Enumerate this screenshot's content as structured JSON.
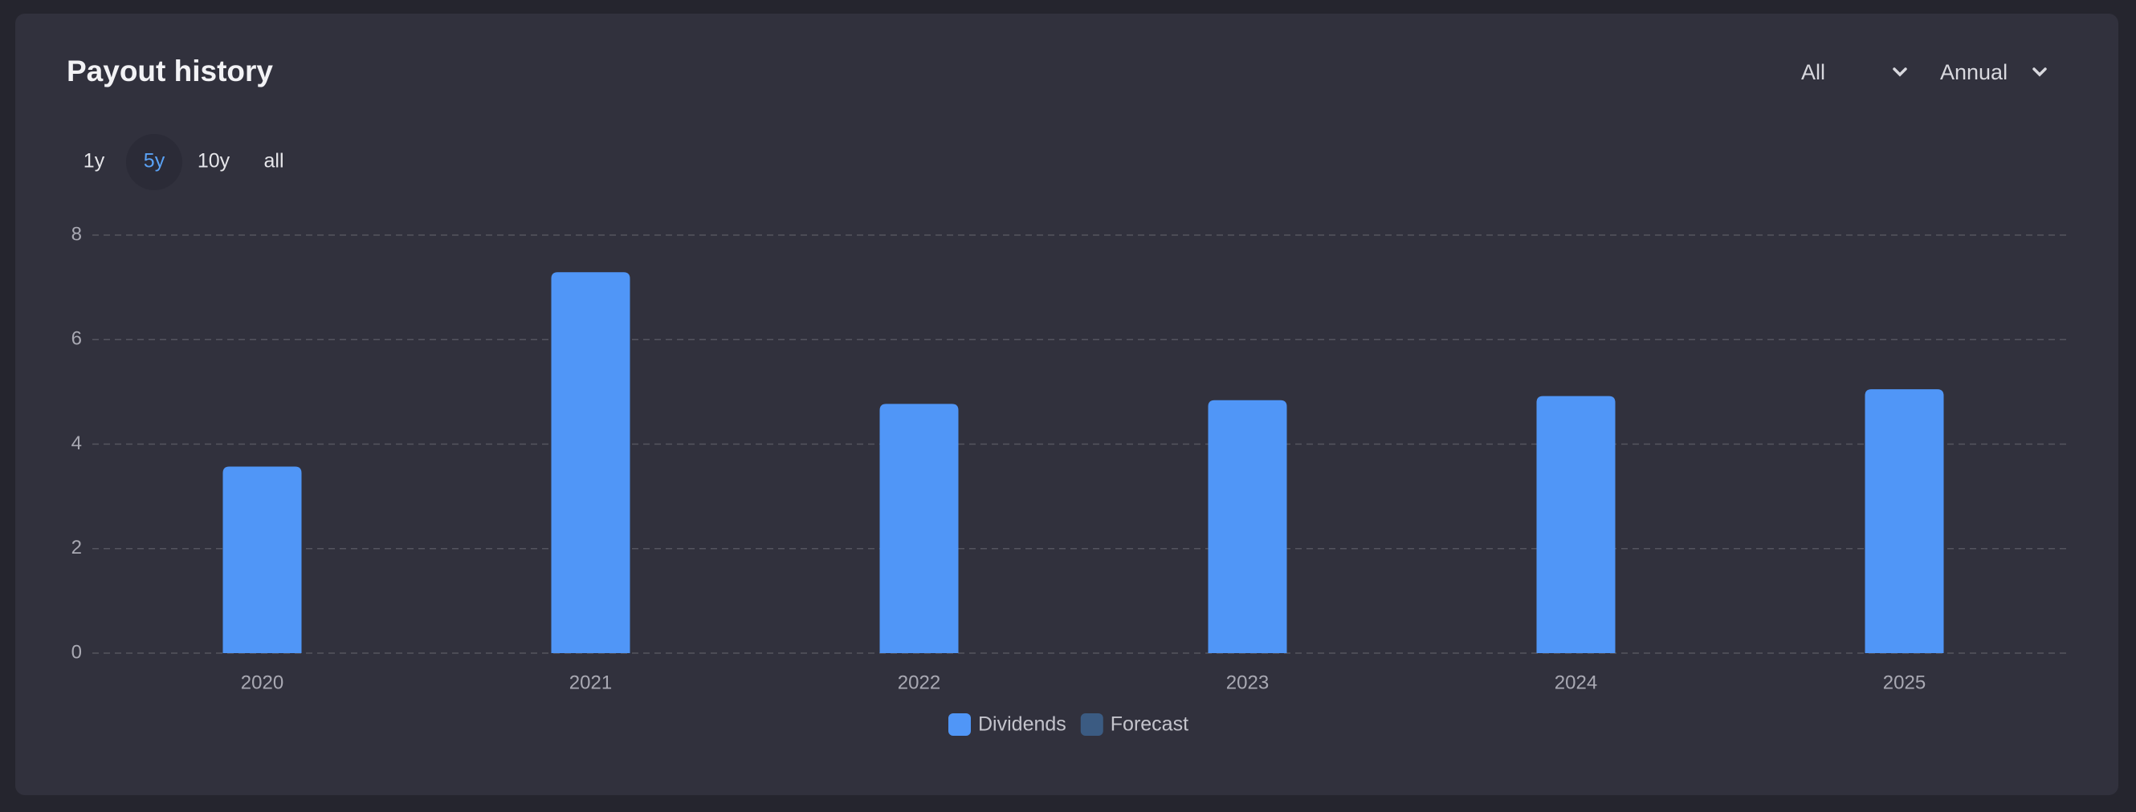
{
  "header": {
    "title": "Payout history",
    "filters": [
      "All",
      "Annual"
    ]
  },
  "ranges": [
    "1y",
    "5y",
    "10y",
    "all"
  ],
  "chart_data": {
    "type": "bar",
    "categories": [
      "2020",
      "2021",
      "2022",
      "2023",
      "2024",
      "2025"
    ],
    "series": [
      {
        "name": "Dividends",
        "color": "#5096f7",
        "values": [
          3.57,
          7.29,
          4.77,
          4.84,
          4.92,
          5.05
        ]
      },
      {
        "name": "Forecast",
        "color": "#3b5b82",
        "values": [
          null,
          null,
          null,
          null,
          null,
          null
        ]
      }
    ],
    "ylim": [
      0,
      8
    ],
    "yticks": [
      0,
      2,
      4,
      6,
      8
    ],
    "grid": true
  }
}
